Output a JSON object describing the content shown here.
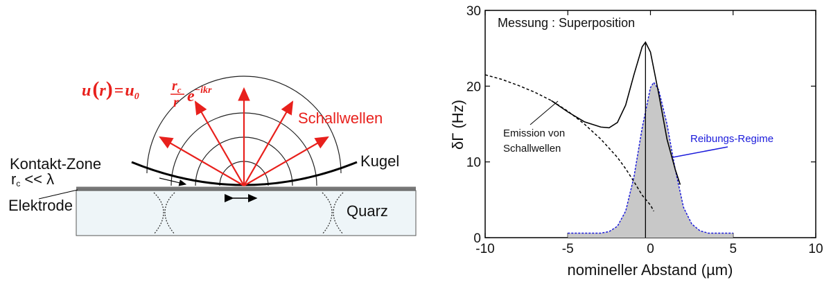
{
  "diagram": {
    "formula": {
      "lhs_u": "u",
      "lhs_open": "(",
      "lhs_r": "r",
      "lhs_close": ")",
      "equals": "=",
      "u0": "u",
      "u0_sub": "0",
      "num": "r",
      "num_sub": "c",
      "den": "r",
      "exp_base": "e",
      "exp": "−ikr"
    },
    "waves_label": "Schallwellen",
    "sphere_label": "Kugel",
    "contact_label": "Kontakt-Zone",
    "contact_r": "r",
    "contact_r_sub": "c",
    "contact_relation": "<< λ",
    "electrode_label": "Elektrode",
    "quartz_label": "Quarz"
  },
  "chart_data": {
    "type": "line",
    "annotation": "Messung : Superposition",
    "emission_label": [
      "Emission von",
      "Schallwellen"
    ],
    "regime_label": "Reibungs-Regime",
    "xlabel": "nomineller Abstand (µm)",
    "ylabel": "δΓ (Hz)",
    "xlim": [
      -10,
      10
    ],
    "xticks": [
      -10,
      -5,
      0,
      5,
      10
    ],
    "ylim": [
      0,
      30
    ],
    "yticks": [
      0,
      10,
      20,
      30
    ],
    "vline_x": -0.3,
    "series": [
      {
        "color": "#1a1adb",
        "style": "dotted",
        "fill": "#c8c8c8",
        "x": [
          -5,
          -3,
          -2.5,
          -2,
          -1.5,
          -1,
          -0.5,
          0,
          0.2,
          0.5,
          1,
          1.5,
          2,
          2.5,
          3,
          3.5,
          5
        ],
        "values": [
          0.6,
          0.6,
          0.8,
          1.5,
          3.5,
          8,
          14.5,
          19.8,
          20.5,
          19.5,
          15,
          9,
          4,
          1.8,
          0.9,
          0.6,
          0.6
        ]
      },
      {
        "color": "#000000",
        "style": "dashed",
        "x": [
          -10,
          -9,
          -8,
          -7,
          -6,
          -5,
          -4,
          -3,
          -2,
          -1.5,
          -1,
          -0.5,
          0,
          0.2
        ],
        "values": [
          21.5,
          20.9,
          20.1,
          19.2,
          18.1,
          16.7,
          15,
          13,
          10.6,
          9.1,
          7.4,
          5.6,
          4.3,
          3.5
        ]
      },
      {
        "color": "#000000",
        "style": "solid",
        "x": [
          -6,
          -5,
          -4,
          -3,
          -2.5,
          -2,
          -1.5,
          -1,
          -0.5,
          -0.3,
          0,
          0.5,
          1,
          1.5,
          1.8
        ],
        "values": [
          18.1,
          16.6,
          15.3,
          14.6,
          14.5,
          15.2,
          17.5,
          21.5,
          25.2,
          25.8,
          24.5,
          19,
          13,
          9,
          7
        ]
      }
    ]
  }
}
